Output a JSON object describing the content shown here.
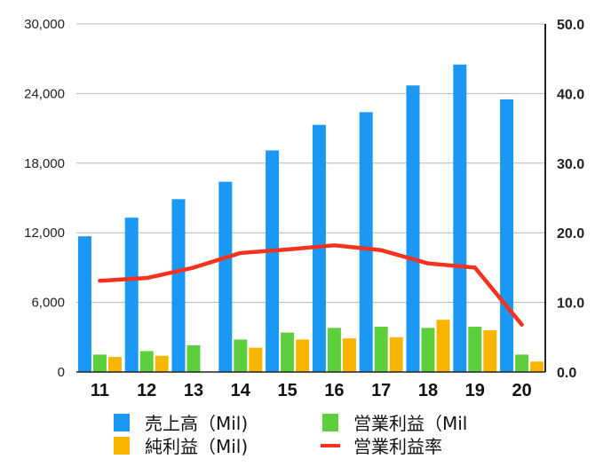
{
  "chart_data": {
    "type": "bar",
    "categories": [
      "11",
      "12",
      "13",
      "14",
      "15",
      "16",
      "17",
      "18",
      "19",
      "20"
    ],
    "series": [
      {
        "name": "売上高（Mil)",
        "kind": "bar",
        "axis": "left",
        "color": "#1a98f4",
        "values": [
          11700,
          13300,
          14900,
          16400,
          19100,
          21300,
          22400,
          24700,
          26500,
          23500
        ]
      },
      {
        "name": "営業利益（Mil",
        "kind": "bar",
        "axis": "left",
        "color": "#5dcf3c",
        "values": [
          1500,
          1800,
          2300,
          2800,
          3400,
          3800,
          3900,
          3800,
          3900,
          1500
        ]
      },
      {
        "name": "純利益（Mil)",
        "kind": "bar",
        "axis": "left",
        "color": "#f7b500",
        "values": [
          1300,
          1400,
          0,
          2100,
          2800,
          2900,
          3000,
          4500,
          3600,
          900
        ]
      },
      {
        "name": "営業利益率",
        "kind": "line",
        "axis": "right",
        "color": "#f5321e",
        "values": [
          13.1,
          13.5,
          15.0,
          17.1,
          17.6,
          18.2,
          17.5,
          15.6,
          15.0,
          6.8
        ]
      }
    ],
    "y_left": {
      "ylim": [
        0,
        30000
      ],
      "ticks": [
        "0",
        "6,000",
        "12,000",
        "18,000",
        "24,000",
        "30,000"
      ]
    },
    "y_right": {
      "ylim": [
        0,
        50
      ],
      "ticks": [
        "0.0",
        "10.0",
        "20.0",
        "30.0",
        "40.0",
        "50.0"
      ]
    },
    "grid": true,
    "legend_position": "bottom"
  }
}
